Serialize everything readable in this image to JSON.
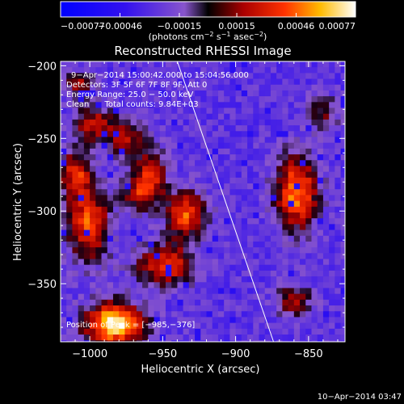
{
  "chart_data": {
    "type": "heatmap",
    "title": "Reconstructed RHESSI Image",
    "xlabel": "Heliocentric X (arcsec)",
    "ylabel": "Heliocentric Y (arcsec)",
    "xlim": [
      -1020,
      -825
    ],
    "ylim": [
      -390,
      -197
    ],
    "x_ticks": [
      -1000,
      -950,
      -900,
      -850
    ],
    "y_ticks": [
      -200,
      -250,
      -300,
      -350
    ],
    "x_tick_labels": [
      "−1000",
      "−950",
      "−900",
      "−850"
    ],
    "y_tick_labels": [
      "−200",
      "−250",
      "−300",
      "−350"
    ],
    "colorbar": {
      "range": [
        -0.00077,
        0.00077
      ],
      "tick_values": [
        -0.00077,
        -0.00046,
        -0.00015,
        0.00015,
        0.00046,
        0.00077
      ],
      "tick_labels": [
        "−0.00077",
        "−0.00046",
        "−0.00015",
        "0.00015",
        "0.00046",
        "0.00077"
      ],
      "unit_text": "(photons cm",
      "unit_exp1": "−2",
      "unit_mid": " s",
      "unit_exp2": "−1",
      "unit_mid2": " asec",
      "unit_exp3": "−2",
      "unit_end": ")"
    },
    "annotations": {
      "time": "9−Apr−2014 15:00:42.000 to 15:04:56.000",
      "detectors": "Detectors: 3F 5F 6F 7F 8F 9F, Att 0",
      "energy": "Energy Range: 25.0 − 50.0 keV",
      "clean": "Clean      Total counts: 9.84E+03",
      "peak": "Position of Peak = [−985,−376]"
    },
    "limb_line": [
      [
        -940,
        -197
      ],
      [
        -874,
        -390
      ]
    ],
    "peak_position": [
      -985,
      -376
    ],
    "hot_spots": [
      {
        "x": -985,
        "y": -376,
        "sx": 14,
        "sy": 10,
        "amp": 1.0
      },
      {
        "x": -1003,
        "y": -307,
        "sx": 10,
        "sy": 18,
        "amp": 0.65
      },
      {
        "x": -1012,
        "y": -272,
        "sx": 8,
        "sy": 11,
        "amp": 0.55
      },
      {
        "x": -1000,
        "y": -238,
        "sx": 9,
        "sy": 9,
        "amp": 0.5
      },
      {
        "x": -978,
        "y": -248,
        "sx": 9,
        "sy": 9,
        "amp": 0.45
      },
      {
        "x": -968,
        "y": -285,
        "sx": 9,
        "sy": 9,
        "amp": 0.45
      },
      {
        "x": -960,
        "y": -272,
        "sx": 7,
        "sy": 12,
        "amp": 0.5
      },
      {
        "x": -950,
        "y": -335,
        "sx": 14,
        "sy": 10,
        "amp": 0.6
      },
      {
        "x": -940,
        "y": -300,
        "sx": 8,
        "sy": 12,
        "amp": 0.45
      },
      {
        "x": -930,
        "y": -300,
        "sx": 8,
        "sy": 10,
        "amp": 0.35
      },
      {
        "x": -860,
        "y": -285,
        "sx": 10,
        "sy": 18,
        "amp": 0.75
      },
      {
        "x": -862,
        "y": -360,
        "sx": 9,
        "sy": 8,
        "amp": 0.4
      },
      {
        "x": -842,
        "y": -230,
        "sx": 8,
        "sy": 8,
        "amp": 0.35
      },
      {
        "x": -1010,
        "y": -210,
        "sx": 8,
        "sy": 6,
        "amp": 0.4
      }
    ]
  },
  "footer": {
    "date": "10−Apr−2014 03:47"
  }
}
